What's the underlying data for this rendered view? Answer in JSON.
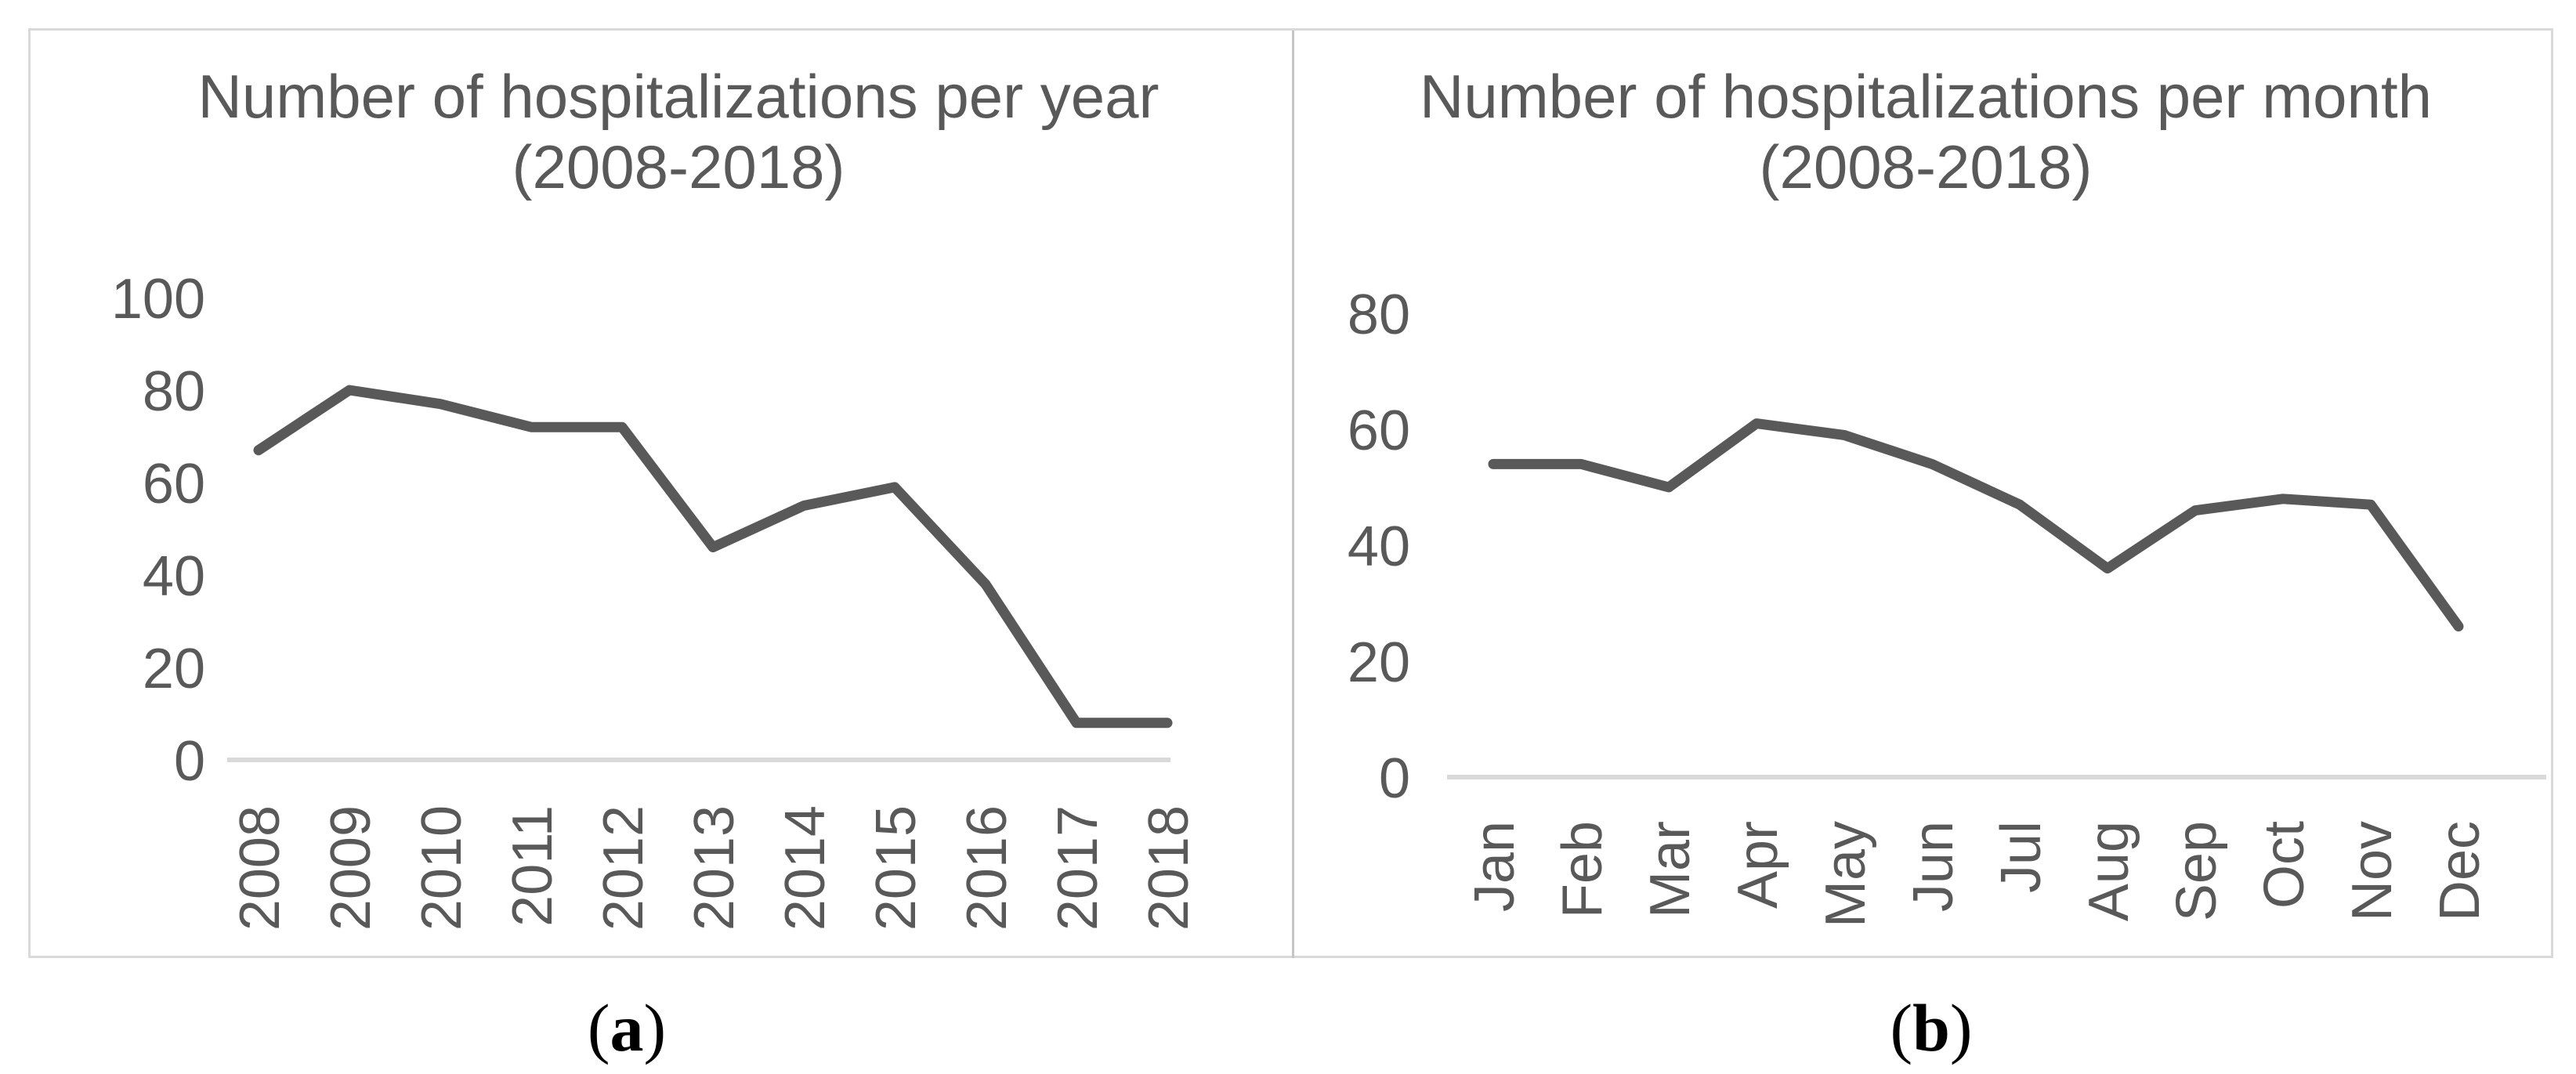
{
  "figure": {
    "caption_a": {
      "open": "(",
      "letter": "a",
      "close": ")"
    },
    "caption_b": {
      "open": "(",
      "letter": "b",
      "close": ")"
    }
  },
  "colors": {
    "line": "#595959",
    "text": "#595959",
    "axis_line": "#d9d9d9",
    "border": "#d9d9d9",
    "divider": "#c6c6c6",
    "caption": "#000000"
  },
  "chart_data": [
    {
      "type": "line",
      "title": "Number of hospitalizations per year",
      "subtitle": "(2008-2018)",
      "categories": [
        "2008",
        "2009",
        "2010",
        "2011",
        "2012",
        "2013",
        "2014",
        "2015",
        "2016",
        "2017",
        "2018"
      ],
      "values": [
        67,
        80,
        77,
        72,
        72,
        46,
        55,
        59,
        38,
        8,
        8
      ],
      "xlabel": "",
      "ylabel": "",
      "ylim": [
        0,
        100
      ],
      "yticks": [
        0,
        20,
        40,
        60,
        80,
        100
      ],
      "grid": false,
      "legend": null,
      "x_tick_rotation": -90
    },
    {
      "type": "line",
      "title": "Number of hospitalizations per month",
      "subtitle": "(2008-2018)",
      "categories": [
        "Jan",
        "Feb",
        "Mar",
        "Apr",
        "May",
        "Jun",
        "Jul",
        "Aug",
        "Sep",
        "Oct",
        "Nov",
        "Dec"
      ],
      "values": [
        54,
        54,
        50,
        61,
        59,
        54,
        47,
        36,
        46,
        48,
        47,
        26
      ],
      "xlabel": "",
      "ylabel": "",
      "ylim": [
        0,
        80
      ],
      "yticks": [
        0,
        20,
        40,
        60,
        80
      ],
      "grid": false,
      "legend": null,
      "x_tick_rotation": -90
    }
  ]
}
